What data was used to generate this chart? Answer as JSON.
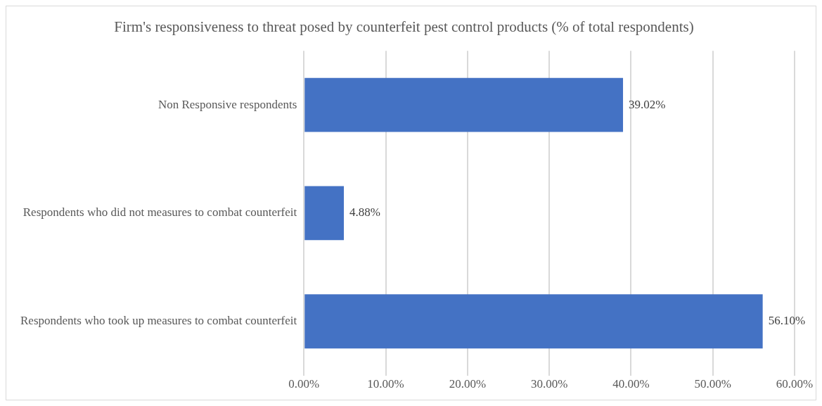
{
  "chart_data": {
    "type": "bar",
    "orientation": "horizontal",
    "title": "Firm's responsiveness to threat posed by counterfeit pest control products (% of total respondents)",
    "categories": [
      "Non Responsive respondents",
      "Respondents who did not measures to combat counterfeit",
      "Respondents who took up measures to combat counterfeit"
    ],
    "values": [
      39.02,
      4.88,
      56.1
    ],
    "value_labels": [
      "39.02%",
      "4.88%",
      "56.10%"
    ],
    "color": "#4472c4",
    "xlim": [
      0,
      60
    ],
    "xticks": [
      {
        "value": 0,
        "label": "0.00%"
      },
      {
        "value": 10,
        "label": "10.00%"
      },
      {
        "value": 20,
        "label": "20.00%"
      },
      {
        "value": 30,
        "label": "30.00%"
      },
      {
        "value": 40,
        "label": "40.00%"
      },
      {
        "value": 50,
        "label": "50.00%"
      },
      {
        "value": 60,
        "label": "60.00%"
      }
    ],
    "grid": "x",
    "legend": false
  }
}
